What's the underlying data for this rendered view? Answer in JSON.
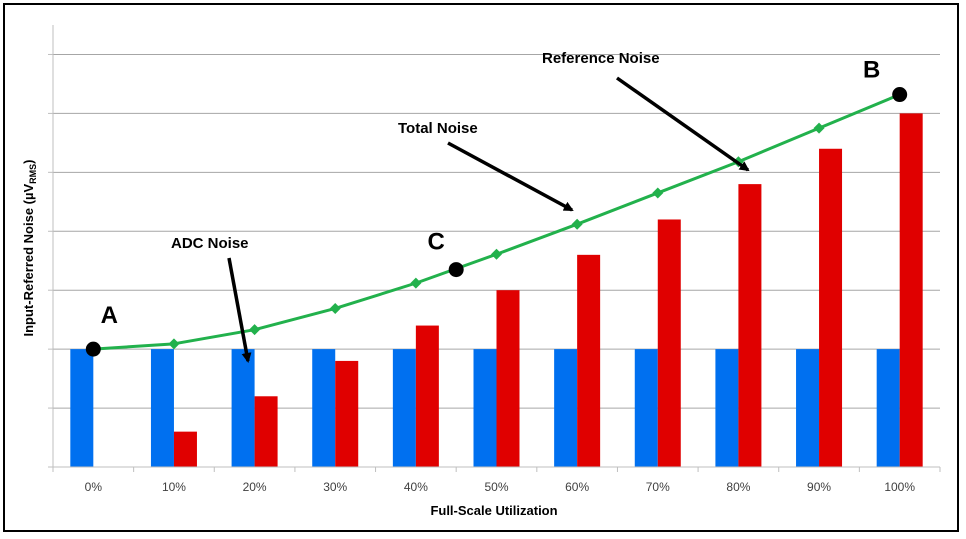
{
  "chart_data": {
    "type": "bar",
    "xlabel": "Full-Scale Utilization",
    "ylabel_main": "Input-Referred Noise (µV",
    "ylabel_sub": "RMS",
    "ylabel_close": ")",
    "categories": [
      "0%",
      "10%",
      "20%",
      "30%",
      "40%",
      "50%",
      "60%",
      "70%",
      "80%",
      "90%",
      "100%"
    ],
    "ylim": [
      0,
      7.5
    ],
    "y_ticks_labeled": false,
    "grid": true,
    "series": [
      {
        "kind": "bar",
        "color": "#0070F0",
        "values": [
          2.0,
          2.0,
          2.0,
          2.0,
          2.0,
          2.0,
          2.0,
          2.0,
          2.0,
          2.0,
          2.0
        ]
      },
      {
        "kind": "bar",
        "color": "#E00000",
        "values": [
          0.0,
          0.6,
          1.2,
          1.8,
          2.4,
          3.0,
          3.6,
          4.2,
          4.8,
          5.4,
          6.0
        ]
      },
      {
        "kind": "line",
        "color": "#22B14C",
        "marker": "diamond",
        "values": [
          2.0,
          2.09,
          2.33,
          2.69,
          3.12,
          3.61,
          4.12,
          4.65,
          5.18,
          5.75,
          6.32
        ]
      }
    ],
    "points": [
      {
        "label": "A",
        "x": 0,
        "y": 2.0
      },
      {
        "label": "C",
        "x": 4.5,
        "y": 3.35
      },
      {
        "label": "B",
        "x": 10,
        "y": 6.32
      }
    ],
    "annotations": [
      {
        "text": "ADC Noise"
      },
      {
        "text": "Total Noise"
      },
      {
        "text": "Reference Noise"
      }
    ]
  }
}
